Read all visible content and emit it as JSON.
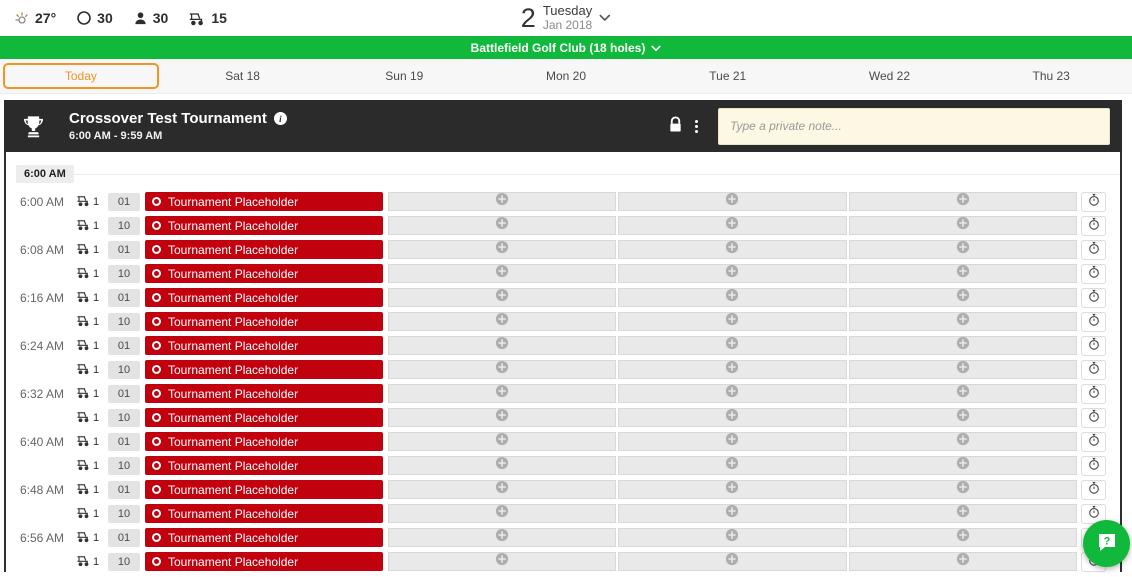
{
  "topbar": {
    "temperature": "27°",
    "rounds_count": "30",
    "players_count": "30",
    "carts_count": "15",
    "date": {
      "day": "2",
      "weekday": "Tuesday",
      "month_year": "Jan 2018"
    }
  },
  "course_bar": {
    "label": "Battlefield Golf Club (18 holes)"
  },
  "tabs": [
    {
      "label": "Today",
      "active": true
    },
    {
      "label": "Sat 18",
      "active": false
    },
    {
      "label": "Sun 19",
      "active": false
    },
    {
      "label": "Mon 20",
      "active": false
    },
    {
      "label": "Tue 21",
      "active": false
    },
    {
      "label": "Wed 22",
      "active": false
    },
    {
      "label": "Thu 23",
      "active": false
    }
  ],
  "tournament": {
    "title": "Crossover Test Tournament",
    "time_range": "6:00 AM - 9:59 AM",
    "note_placeholder": "Type a private note...",
    "note_value": ""
  },
  "sheet": {
    "section_label": "6:00 AM",
    "placeholder_label": "Tournament Placeholder",
    "cart_count": "1",
    "holes": [
      "01",
      "10"
    ],
    "times": [
      "6:00 AM",
      "6:08 AM",
      "6:16 AM",
      "6:24 AM",
      "6:32 AM",
      "6:40 AM",
      "6:48 AM",
      "6:56 AM"
    ],
    "empty_slots_per_row": 3
  },
  "colors": {
    "brand_green": "#10b93c",
    "placeholder_red": "#c2010f",
    "active_tab_orange": "#f29423",
    "header_black": "#2b2b2b",
    "note_yellow": "#fcf8e3"
  }
}
